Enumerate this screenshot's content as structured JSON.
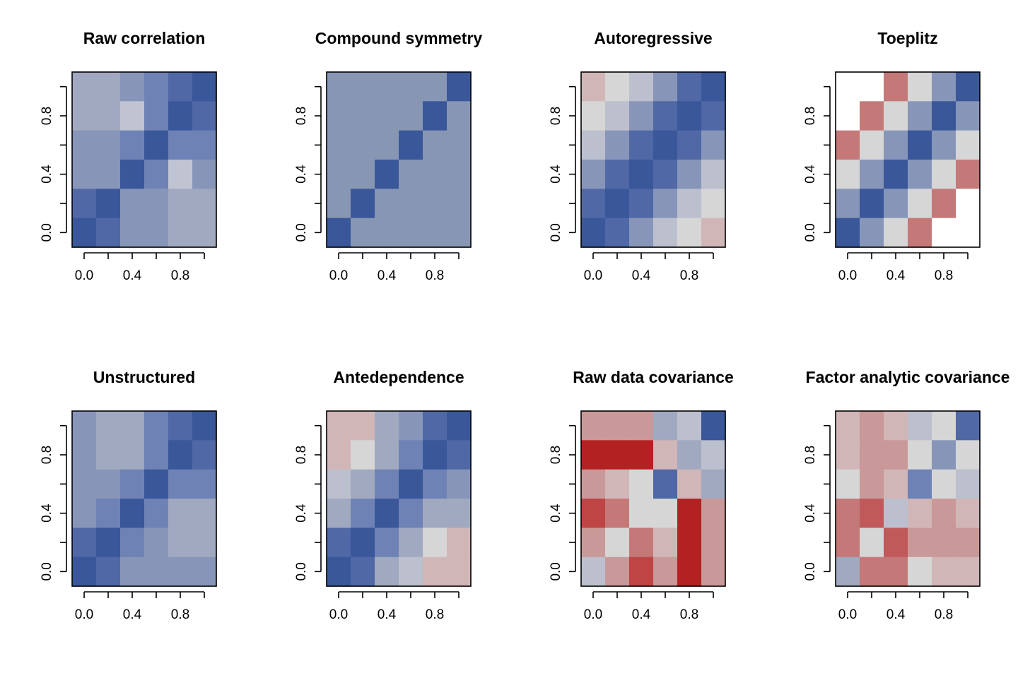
{
  "chart_data": [
    {
      "type": "heatmap",
      "title": "Raw correlation",
      "xticks": [
        "0.0",
        "0.4",
        "0.8"
      ],
      "yticks": [
        "0.0",
        "0.4",
        "0.8"
      ],
      "xlim": [
        -0.1,
        1.1
      ],
      "ylim": [
        -0.1,
        1.1
      ],
      "grid": false,
      "cells": [
        [
          "#a0a9c0",
          "#a0a9c0",
          "#8796b8",
          "#6e82b5",
          "#5068a6",
          "#3a579a"
        ],
        [
          "#a0a9c0",
          "#a0a9c0",
          "#c0c4d2",
          "#6e82b5",
          "#3a579a",
          "#5068a6"
        ],
        [
          "#8796b8",
          "#8796b8",
          "#6e82b5",
          "#3a579a",
          "#6e82b5",
          "#6e82b5"
        ],
        [
          "#8796b8",
          "#8796b8",
          "#3a579a",
          "#6e82b5",
          "#c0c4d2",
          "#8796b8"
        ],
        [
          "#5068a6",
          "#3a579a",
          "#8796b8",
          "#8796b8",
          "#a0a9c0",
          "#a0a9c0"
        ],
        [
          "#3a579a",
          "#5068a6",
          "#8796b8",
          "#8796b8",
          "#a0a9c0",
          "#a0a9c0"
        ]
      ]
    },
    {
      "type": "heatmap",
      "title": "Compound symmetry",
      "xticks": [
        "0.0",
        "0.4",
        "0.8"
      ],
      "yticks": [
        "0.0",
        "0.4",
        "0.8"
      ],
      "xlim": [
        -0.1,
        1.1
      ],
      "ylim": [
        -0.1,
        1.1
      ],
      "grid": false,
      "cells": [
        [
          "#8796b3",
          "#8796b3",
          "#8796b3",
          "#8796b3",
          "#8796b3",
          "#3a579a"
        ],
        [
          "#8796b3",
          "#8796b3",
          "#8796b3",
          "#8796b3",
          "#3a579a",
          "#8796b3"
        ],
        [
          "#8796b3",
          "#8796b3",
          "#8796b3",
          "#3a579a",
          "#8796b3",
          "#8796b3"
        ],
        [
          "#8796b3",
          "#8796b3",
          "#3a579a",
          "#8796b3",
          "#8796b3",
          "#8796b3"
        ],
        [
          "#8796b3",
          "#3a579a",
          "#8796b3",
          "#8796b3",
          "#8796b3",
          "#8796b3"
        ],
        [
          "#3a579a",
          "#8796b3",
          "#8796b3",
          "#8796b3",
          "#8796b3",
          "#8796b3"
        ]
      ]
    },
    {
      "type": "heatmap",
      "title": "Autoregressive",
      "xticks": [
        "0.0",
        "0.4",
        "0.8"
      ],
      "yticks": [
        "0.0",
        "0.4",
        "0.8"
      ],
      "xlim": [
        -0.1,
        1.1
      ],
      "ylim": [
        -0.1,
        1.1
      ],
      "grid": false,
      "cells": [
        [
          "#d1b6b8",
          "#d6d6d6",
          "#bcbfcd",
          "#8796b8",
          "#5068a6",
          "#3a579a"
        ],
        [
          "#d6d6d6",
          "#bcbfcd",
          "#8796b8",
          "#5068a6",
          "#3a579a",
          "#5068a6"
        ],
        [
          "#bcbfcd",
          "#8796b8",
          "#5068a6",
          "#3a579a",
          "#5068a6",
          "#8796b8"
        ],
        [
          "#8796b8",
          "#5068a6",
          "#3a579a",
          "#5068a6",
          "#8796b8",
          "#bcbfcd"
        ],
        [
          "#5068a6",
          "#3a579a",
          "#5068a6",
          "#8796b8",
          "#bcbfcd",
          "#d6d6d6"
        ],
        [
          "#3a579a",
          "#5068a6",
          "#8796b8",
          "#bcbfcd",
          "#d6d6d6",
          "#d1b6b8"
        ]
      ]
    },
    {
      "type": "heatmap",
      "title": "Toeplitz",
      "xticks": [
        "0.0",
        "0.4",
        "0.8"
      ],
      "yticks": [
        "0.0",
        "0.4",
        "0.8"
      ],
      "xlim": [
        -0.1,
        1.1
      ],
      "ylim": [
        -0.1,
        1.1
      ],
      "grid": false,
      "cells": [
        [
          "#ffffff",
          "#ffffff",
          "#c47878",
          "#d6d6d6",
          "#8796b8",
          "#3a579a"
        ],
        [
          "#ffffff",
          "#c47878",
          "#d6d6d6",
          "#8796b8",
          "#3a579a",
          "#8796b8"
        ],
        [
          "#c47878",
          "#d6d6d6",
          "#8796b8",
          "#3a579a",
          "#8796b8",
          "#d6d6d6"
        ],
        [
          "#d6d6d6",
          "#8796b8",
          "#3a579a",
          "#8796b8",
          "#d6d6d6",
          "#c47878"
        ],
        [
          "#8796b8",
          "#3a579a",
          "#8796b8",
          "#d6d6d6",
          "#c47878",
          "#ffffff"
        ],
        [
          "#3a579a",
          "#8796b8",
          "#d6d6d6",
          "#c47878",
          "#ffffff",
          "#ffffff"
        ]
      ]
    },
    {
      "type": "heatmap",
      "title": "Unstructured",
      "xticks": [
        "0.0",
        "0.4",
        "0.8"
      ],
      "yticks": [
        "0.0",
        "0.4",
        "0.8"
      ],
      "xlim": [
        -0.1,
        1.1
      ],
      "ylim": [
        -0.1,
        1.1
      ],
      "grid": false,
      "cells": [
        [
          "#8796b8",
          "#a0a9c0",
          "#a0a9c0",
          "#6e82b5",
          "#5068a6",
          "#3a579a"
        ],
        [
          "#8796b8",
          "#a0a9c0",
          "#a0a9c0",
          "#6e82b5",
          "#3a579a",
          "#5068a6"
        ],
        [
          "#8796b8",
          "#8796b8",
          "#6e82b5",
          "#3a579a",
          "#6e82b5",
          "#6e82b5"
        ],
        [
          "#8796b8",
          "#6e82b5",
          "#3a579a",
          "#6e82b5",
          "#a0a9c0",
          "#a0a9c0"
        ],
        [
          "#5068a6",
          "#3a579a",
          "#6e82b5",
          "#8796b8",
          "#a0a9c0",
          "#a0a9c0"
        ],
        [
          "#3a579a",
          "#5068a6",
          "#8796b8",
          "#8796b8",
          "#8796b8",
          "#8796b8"
        ]
      ]
    },
    {
      "type": "heatmap",
      "title": "Antedependence",
      "xticks": [
        "0.0",
        "0.4",
        "0.8"
      ],
      "yticks": [
        "0.0",
        "0.4",
        "0.8"
      ],
      "xlim": [
        -0.1,
        1.1
      ],
      "ylim": [
        -0.1,
        1.1
      ],
      "grid": false,
      "cells": [
        [
          "#d1b6b8",
          "#d1b6b8",
          "#a0a9c0",
          "#8796b8",
          "#5068a6",
          "#3a579a"
        ],
        [
          "#d1b6b8",
          "#d6d6d6",
          "#a0a9c0",
          "#6e82b5",
          "#3a579a",
          "#5068a6"
        ],
        [
          "#bcbfcd",
          "#a0a9c0",
          "#6e82b5",
          "#3a579a",
          "#6e82b5",
          "#8796b8"
        ],
        [
          "#a0a9c0",
          "#6e82b5",
          "#3a579a",
          "#6e82b5",
          "#a0a9c0",
          "#a0a9c0"
        ],
        [
          "#5068a6",
          "#3a579a",
          "#6e82b5",
          "#a0a9c0",
          "#d6d6d6",
          "#d1b6b8"
        ],
        [
          "#3a579a",
          "#5068a6",
          "#a0a9c0",
          "#bcbfcd",
          "#d1b6b8",
          "#d1b6b8"
        ]
      ]
    },
    {
      "type": "heatmap",
      "title": "Raw data covariance",
      "xticks": [
        "0.0",
        "0.4",
        "0.8"
      ],
      "yticks": [
        "0.0",
        "0.4",
        "0.8"
      ],
      "xlim": [
        -0.1,
        1.1
      ],
      "ylim": [
        -0.1,
        1.1
      ],
      "grid": false,
      "cells": [
        [
          "#c99898",
          "#c99898",
          "#c99898",
          "#a0a9c0",
          "#bcbfcd",
          "#3a579a"
        ],
        [
          "#b22222",
          "#b22222",
          "#b22222",
          "#d1b6b8",
          "#a0a9c0",
          "#bcbfcd"
        ],
        [
          "#c99898",
          "#d1b6b8",
          "#d6d6d6",
          "#5068a6",
          "#d1b6b8",
          "#a0a9c0"
        ],
        [
          "#bf4444",
          "#c47878",
          "#d6d6d6",
          "#d6d6d6",
          "#b22222",
          "#c99898"
        ],
        [
          "#c99898",
          "#d6d6d6",
          "#c47878",
          "#d1b6b8",
          "#b22222",
          "#c99898"
        ],
        [
          "#bcbfcd",
          "#c99898",
          "#bf4444",
          "#c99898",
          "#b22222",
          "#c99898"
        ]
      ]
    },
    {
      "type": "heatmap",
      "title": "Factor analytic covariance",
      "xticks": [
        "0.0",
        "0.4",
        "0.8"
      ],
      "yticks": [
        "0.0",
        "0.4",
        "0.8"
      ],
      "xlim": [
        -0.1,
        1.1
      ],
      "ylim": [
        -0.1,
        1.1
      ],
      "grid": false,
      "cells": [
        [
          "#d1b6b8",
          "#c99898",
          "#d1b6b8",
          "#bcbfcd",
          "#d6d6d6",
          "#5068a6"
        ],
        [
          "#d1b6b8",
          "#c99898",
          "#c99898",
          "#d6d6d6",
          "#8796b8",
          "#d6d6d6"
        ],
        [
          "#d6d6d6",
          "#c99898",
          "#d1b6b8",
          "#6e82b5",
          "#d6d6d6",
          "#bcbfcd"
        ],
        [
          "#c47878",
          "#c05a5a",
          "#bcbfcd",
          "#d1b6b8",
          "#c99898",
          "#d1b6b8"
        ],
        [
          "#c47878",
          "#d6d6d6",
          "#c05a5a",
          "#c99898",
          "#c99898",
          "#c99898"
        ],
        [
          "#a0a9c0",
          "#c47878",
          "#c47878",
          "#d6d6d6",
          "#d1b6b8",
          "#d1b6b8"
        ]
      ]
    }
  ]
}
